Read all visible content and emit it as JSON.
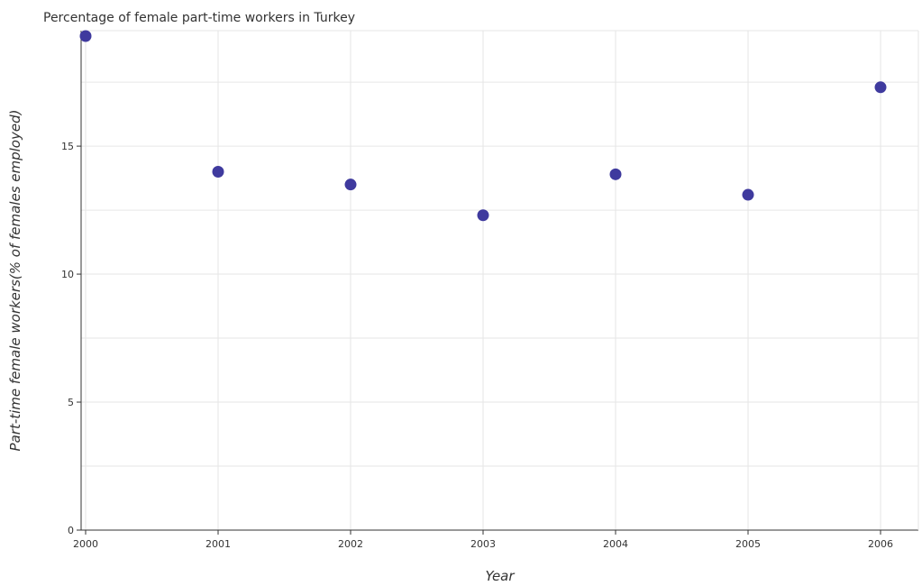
{
  "chart_data": {
    "type": "scatter",
    "title": "Percentage of female part-time workers in Turkey",
    "xlabel": "Year",
    "ylabel": "Part-time female workers(% of females employed)",
    "categories": [
      "2000",
      "2001",
      "2002",
      "2003",
      "2004",
      "2005",
      "2006"
    ],
    "values": [
      19.3,
      14.0,
      13.5,
      12.3,
      13.9,
      13.1,
      17.3
    ],
    "yticks": [
      0,
      5,
      10,
      15
    ],
    "ylim": [
      0,
      19.3
    ],
    "grid": true,
    "legend": "none",
    "marker_color": "#3f3a9e"
  }
}
